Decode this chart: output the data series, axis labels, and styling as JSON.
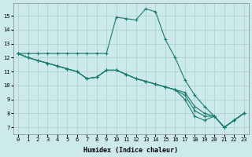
{
  "xlabel": "Humidex (Indice chaleur)",
  "bg_color": "#cdeaea",
  "grid_color": "#aacece",
  "line_color": "#1a7a6e",
  "xlim": [
    -0.5,
    23.5
  ],
  "ylim": [
    6.5,
    15.9
  ],
  "yticks": [
    7,
    8,
    9,
    10,
    11,
    12,
    13,
    14,
    15
  ],
  "xticks": [
    0,
    1,
    2,
    3,
    4,
    5,
    6,
    7,
    8,
    9,
    10,
    11,
    12,
    13,
    14,
    15,
    16,
    17,
    18,
    19,
    20,
    21,
    22,
    23
  ],
  "lines": [
    {
      "x": [
        0,
        1,
        2,
        3,
        4,
        5,
        6,
        7,
        8,
        9,
        10,
        11,
        12,
        13,
        14,
        15,
        16,
        17,
        18,
        19,
        20,
        21,
        22,
        23
      ],
      "y": [
        12.3,
        12.3,
        12.3,
        12.3,
        12.3,
        12.3,
        12.3,
        12.3,
        12.3,
        12.3,
        14.9,
        14.8,
        14.7,
        15.5,
        15.3,
        13.3,
        12.0,
        10.4,
        9.3,
        8.5,
        7.8,
        7.0,
        7.5,
        8.0
      ]
    },
    {
      "x": [
        0,
        1,
        2,
        3,
        4,
        5,
        6,
        7,
        8,
        9,
        10,
        11,
        12,
        13,
        14,
        15,
        16,
        17,
        18,
        19,
        20,
        21,
        22,
        23
      ],
      "y": [
        12.3,
        12.0,
        11.8,
        11.6,
        11.4,
        11.2,
        11.0,
        10.5,
        10.6,
        11.1,
        11.1,
        10.8,
        10.5,
        10.3,
        10.1,
        9.9,
        9.7,
        9.5,
        8.5,
        8.0,
        7.8,
        7.0,
        7.5,
        8.0
      ]
    },
    {
      "x": [
        0,
        1,
        2,
        3,
        4,
        5,
        6,
        7,
        8,
        9,
        10,
        11,
        12,
        13,
        14,
        15,
        16,
        17,
        18,
        19,
        20,
        21,
        22,
        23
      ],
      "y": [
        12.3,
        12.0,
        11.8,
        11.6,
        11.4,
        11.2,
        11.0,
        10.5,
        10.6,
        11.1,
        11.1,
        10.8,
        10.5,
        10.3,
        10.1,
        9.9,
        9.7,
        9.3,
        8.2,
        7.8,
        7.8,
        7.0,
        7.5,
        8.0
      ]
    },
    {
      "x": [
        0,
        1,
        2,
        3,
        4,
        5,
        6,
        7,
        8,
        9,
        10,
        11,
        12,
        13,
        14,
        15,
        16,
        17,
        18,
        19,
        20,
        21,
        22,
        23
      ],
      "y": [
        12.3,
        12.0,
        11.8,
        11.6,
        11.4,
        11.2,
        11.0,
        10.5,
        10.6,
        11.1,
        11.1,
        10.8,
        10.5,
        10.3,
        10.1,
        9.9,
        9.7,
        9.0,
        7.8,
        7.5,
        7.8,
        7.0,
        7.5,
        8.0
      ]
    }
  ]
}
